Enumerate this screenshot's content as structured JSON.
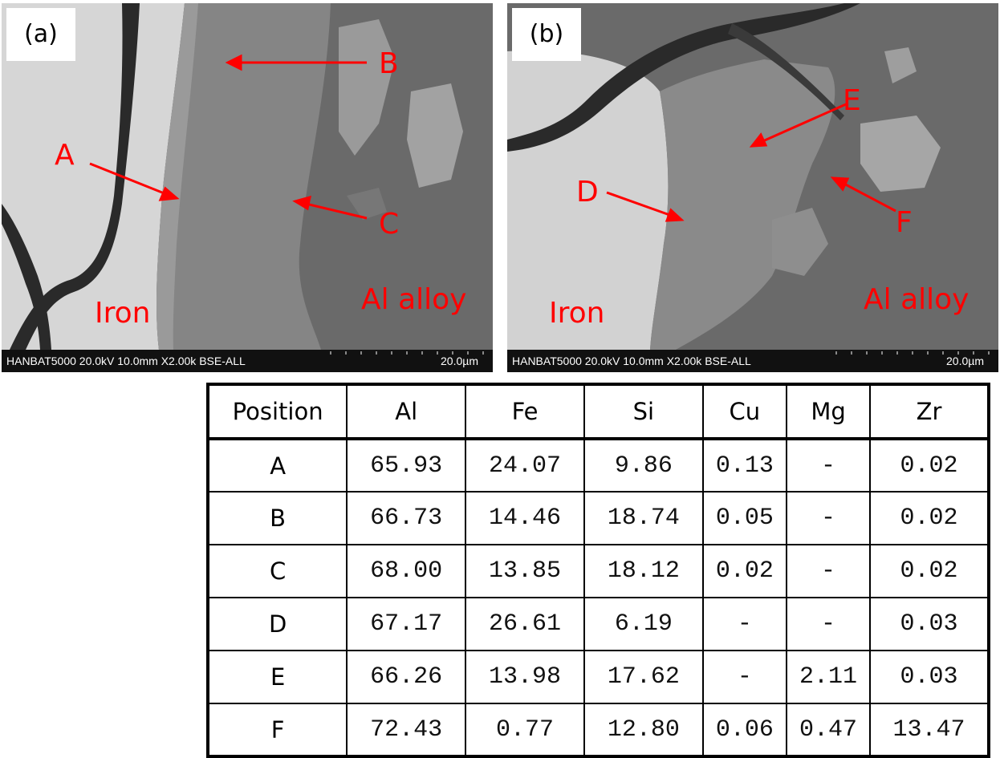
{
  "figure": {
    "panel_a": {
      "tag": "(a)",
      "labels": {
        "A": "A",
        "B": "B",
        "C": "C",
        "iron": "Iron",
        "al_alloy": "Al alloy"
      },
      "infobar": {
        "meta": "HANBAT5000 20.0kV 10.0mm X2.00k BSE-ALL",
        "scale": "20.0µm"
      }
    },
    "panel_b": {
      "tag": "(b)",
      "labels": {
        "D": "D",
        "E": "E",
        "F": "F",
        "iron": "Iron",
        "al_alloy": "Al alloy"
      },
      "infobar": {
        "meta": "HANBAT5000 20.0kV 10.0mm X2.00k BSE-ALL",
        "scale": "20.0µm"
      }
    },
    "annotation_color": "#ff0000"
  },
  "table": {
    "headers": [
      "Position",
      "Al",
      "Fe",
      "Si",
      "Cu",
      "Mg",
      "Zr"
    ],
    "rows": [
      [
        "A",
        "65.93",
        "24.07",
        "9.86",
        "0.13",
        "-",
        "0.02"
      ],
      [
        "B",
        "66.73",
        "14.46",
        "18.74",
        "0.05",
        "-",
        "0.02"
      ],
      [
        "C",
        "68.00",
        "13.85",
        "18.12",
        "0.02",
        "-",
        "0.02"
      ],
      [
        "D",
        "67.17",
        "26.61",
        "6.19",
        "-",
        "-",
        "0.03"
      ],
      [
        "E",
        "66.26",
        "13.98",
        "17.62",
        "-",
        "2.11",
        "0.03"
      ],
      [
        "F",
        "72.43",
        "0.77",
        "12.80",
        "0.06",
        "0.47",
        "13.47"
      ]
    ]
  }
}
